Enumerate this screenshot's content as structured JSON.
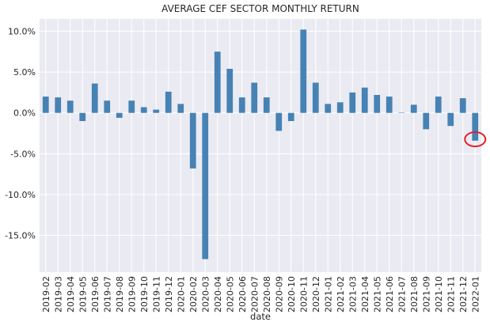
{
  "chart_data": {
    "type": "bar",
    "title": "AVERAGE CEF SECTOR MONTHLY RETURN",
    "xlabel": "date",
    "ylabel": "",
    "ylim": [
      -19.5,
      11.5
    ],
    "yticks": [
      10,
      5,
      0,
      -5,
      -10,
      -15
    ],
    "ytick_labels": [
      "10.0%",
      "5.0%",
      "0.0%",
      "-5.0%",
      "-10.0%",
      "-15.0%"
    ],
    "grid": true,
    "bar_color": "#4682b4",
    "background": "#eaeaf2",
    "highlight_color": "#e0202a",
    "highlight_category": "2022-01",
    "categories": [
      "2019-02",
      "2019-03",
      "2019-04",
      "2019-05",
      "2019-06",
      "2019-07",
      "2019-08",
      "2019-09",
      "2019-10",
      "2019-11",
      "2019-12",
      "2020-01",
      "2020-02",
      "2020-03",
      "2020-04",
      "2020-05",
      "2020-06",
      "2020-07",
      "2020-08",
      "2020-09",
      "2020-10",
      "2020-11",
      "2020-12",
      "2021-01",
      "2021-02",
      "2021-03",
      "2021-04",
      "2021-05",
      "2021-06",
      "2021-07",
      "2021-08",
      "2021-09",
      "2021-10",
      "2021-11",
      "2021-12",
      "2022-01"
    ],
    "values": [
      2.0,
      1.9,
      1.5,
      -1.0,
      3.6,
      1.5,
      -0.6,
      1.5,
      0.7,
      0.4,
      2.6,
      1.1,
      -6.8,
      -17.9,
      7.5,
      5.4,
      1.9,
      3.7,
      1.9,
      -2.2,
      -1.0,
      10.2,
      3.7,
      1.1,
      1.3,
      2.5,
      3.1,
      2.2,
      2.0,
      0.05,
      1.0,
      -2.0,
      2.0,
      -1.6,
      1.8,
      -3.4
    ]
  }
}
